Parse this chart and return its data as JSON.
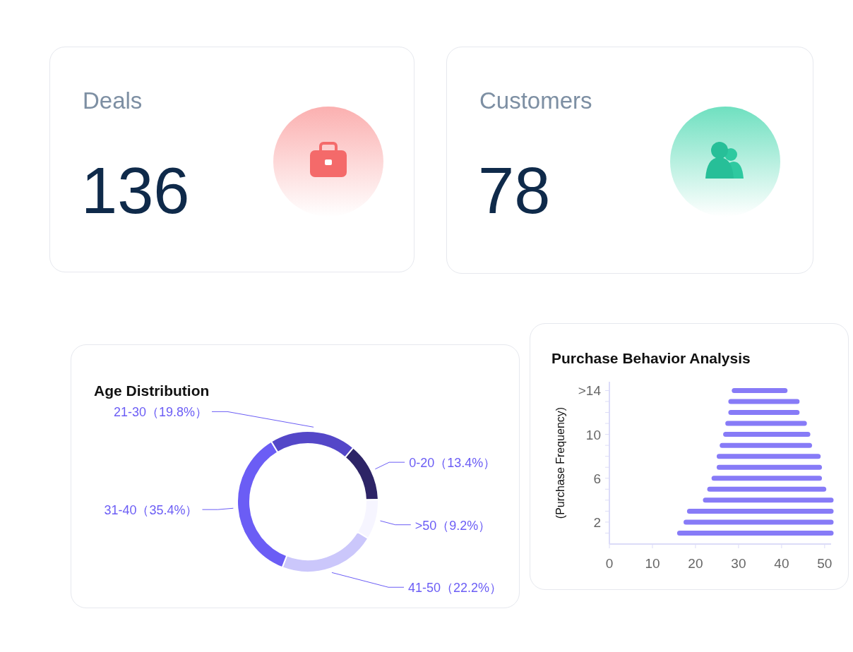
{
  "chart_data": [
    {
      "type": "other",
      "title": "Deals",
      "annotations": [
        "136"
      ]
    },
    {
      "type": "other",
      "title": "Customers",
      "annotations": [
        "78"
      ]
    },
    {
      "type": "donut",
      "title": "Age Distribution",
      "categories": [
        "0-20",
        ">50",
        "41-50",
        "31-40",
        "21-30"
      ],
      "values": [
        13.4,
        9.2,
        22.2,
        35.4,
        19.8
      ],
      "colors": [
        "#2d2466",
        "#f6f5ff",
        "#cbc7fb",
        "#6b5df5",
        "#5447c8"
      ],
      "value_labels": [
        "（13.4%）",
        "（9.2%）",
        "（22.2%）",
        "（35.4%）",
        "（19.8%）"
      ]
    },
    {
      "type": "line",
      "marker": "none",
      "line_style": "solid",
      "title": "Purchase Behavior Analysis",
      "ylabel": "(Purchase Frequency)",
      "xlim": [
        0,
        51.5
      ],
      "xticks": [
        0,
        10,
        20,
        30,
        40,
        50
      ],
      "ylim": [
        0,
        14.8
      ],
      "yticks": [
        {
          "value": 1,
          "label": null
        },
        2,
        {
          "value": 3,
          "label": null
        },
        {
          "value": 4,
          "label": null
        },
        {
          "value": 5,
          "label": null
        },
        6,
        {
          "value": 7,
          "label": null
        },
        {
          "value": 8,
          "label": null
        },
        {
          "value": 9,
          "label": null
        },
        10,
        {
          "value": 11,
          "label": null
        },
        {
          "value": 12,
          "label": null
        },
        {
          "value": 13,
          "label": null
        },
        {
          "value": 14,
          "label": ">14"
        }
      ],
      "series": [
        {
          "color": "#7a6df6",
          "x": [
            29,
            40.8
          ],
          "values": [
            14,
            14
          ]
        },
        {
          "color": "#7a6df6",
          "x": [
            28.2,
            43.6
          ],
          "values": [
            13,
            13
          ]
        },
        {
          "color": "#7a6df6",
          "x": [
            28.2,
            43.6
          ],
          "values": [
            12,
            12
          ]
        },
        {
          "color": "#7a6df6",
          "x": [
            27.5,
            45.3
          ],
          "values": [
            11,
            11
          ]
        },
        {
          "color": "#7a6df6",
          "x": [
            27,
            46.1
          ],
          "values": [
            10,
            10
          ]
        },
        {
          "color": "#7a6df6",
          "x": [
            26.2,
            46.5
          ],
          "values": [
            9,
            9
          ]
        },
        {
          "color": "#7a6df6",
          "x": [
            25.5,
            48.5
          ],
          "values": [
            8,
            8
          ]
        },
        {
          "color": "#7a6df6",
          "x": [
            25.5,
            48.8
          ],
          "values": [
            7,
            7
          ]
        },
        {
          "color": "#7a6df6",
          "x": [
            24.3,
            48.8
          ],
          "values": [
            6,
            6
          ]
        },
        {
          "color": "#7a6df6",
          "x": [
            23.3,
            49.8
          ],
          "values": [
            5,
            5
          ]
        },
        {
          "color": "#7a6df6",
          "x": [
            22.3,
            51.5
          ],
          "values": [
            4,
            4
          ]
        },
        {
          "color": "#7a6df6",
          "x": [
            18.6,
            51.5
          ],
          "values": [
            3,
            3
          ]
        },
        {
          "color": "#7a6df6",
          "x": [
            17.8,
            51.5
          ],
          "values": [
            2,
            2
          ]
        },
        {
          "color": "#7a6df6",
          "x": [
            16.3,
            51.5
          ],
          "values": [
            1,
            1
          ]
        }
      ]
    }
  ]
}
